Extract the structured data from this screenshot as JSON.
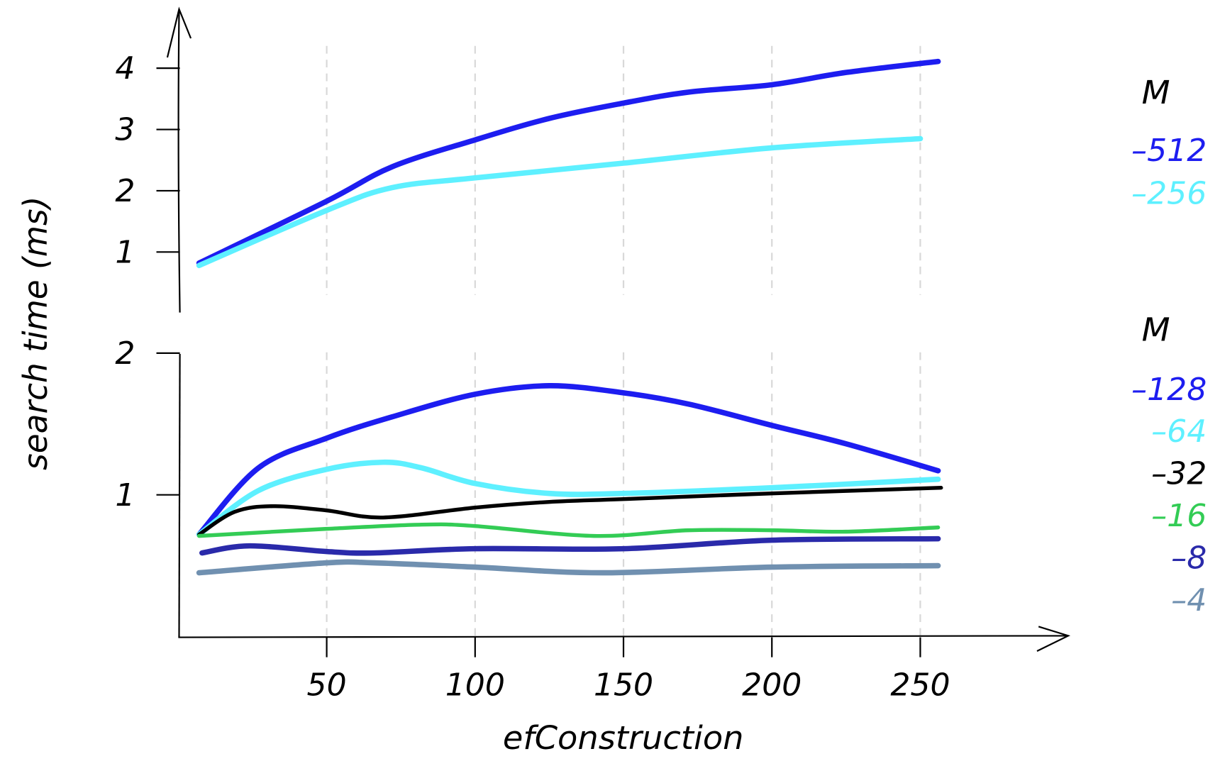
{
  "chart_data": [
    {
      "type": "line",
      "panel": "top",
      "xlabel": "efConstruction",
      "ylabel": "search time (ms)",
      "xlim": [
        0,
        300
      ],
      "ylim": [
        0,
        4.6
      ],
      "xticks": [
        "50",
        "100",
        "150",
        "200",
        "250"
      ],
      "yticks": [
        "1",
        "2",
        "3",
        "4"
      ],
      "grid": "vertical dashed",
      "legend_title": "M",
      "legend_position": "right",
      "series": [
        {
          "name": "512",
          "color": "#1d1df0",
          "x": [
            7,
            50,
            72,
            100,
            125,
            150,
            172,
            200,
            225,
            256
          ],
          "y": [
            0.82,
            1.83,
            2.39,
            2.83,
            3.18,
            3.43,
            3.61,
            3.73,
            3.93,
            4.11
          ]
        },
        {
          "name": "256",
          "color": "#5ef0ff",
          "x": [
            7,
            50,
            72,
            100,
            150,
            200,
            250
          ],
          "y": [
            0.78,
            1.68,
            2.05,
            2.21,
            2.45,
            2.7,
            2.85
          ]
        }
      ]
    },
    {
      "type": "line",
      "panel": "bottom",
      "xlabel": "efConstruction",
      "ylabel": "search time (ms)",
      "xlim": [
        0,
        300
      ],
      "ylim": [
        0,
        2
      ],
      "xticks": [
        "50",
        "100",
        "150",
        "200",
        "250"
      ],
      "yticks": [
        "1",
        "2"
      ],
      "grid": "vertical dashed",
      "legend_title": "M",
      "legend_position": "right",
      "series": [
        {
          "name": "128",
          "color": "#1d1df0",
          "x": [
            7,
            27,
            50,
            72,
            100,
            125,
            150,
            172,
            200,
            225,
            256
          ],
          "y": [
            0.72,
            1.19,
            1.4,
            1.55,
            1.71,
            1.77,
            1.72,
            1.64,
            1.49,
            1.36,
            1.17
          ]
        },
        {
          "name": "64",
          "color": "#5ef0ff",
          "x": [
            7,
            27,
            50,
            69,
            82,
            100,
            125,
            150,
            200,
            256
          ],
          "y": [
            0.72,
            1.03,
            1.18,
            1.23,
            1.19,
            1.08,
            1.01,
            1.01,
            1.05,
            1.11
          ]
        },
        {
          "name": "32",
          "color": "#000000",
          "x": [
            7,
            19,
            32,
            50,
            69,
            100,
            125,
            150,
            200,
            257
          ],
          "y": [
            0.72,
            0.88,
            0.92,
            0.89,
            0.84,
            0.91,
            0.95,
            0.97,
            1.01,
            1.05
          ]
        },
        {
          "name": "16",
          "color": "#33cc55",
          "x": [
            7,
            50,
            82,
            100,
            140,
            172,
            200,
            225,
            256
          ],
          "y": [
            0.71,
            0.76,
            0.79,
            0.78,
            0.71,
            0.75,
            0.75,
            0.74,
            0.77
          ]
        },
        {
          "name": "8",
          "color": "#2a2aaa",
          "x": [
            8,
            24,
            50,
            66,
            100,
            150,
            200,
            256
          ],
          "y": [
            0.59,
            0.64,
            0.6,
            0.59,
            0.62,
            0.62,
            0.68,
            0.69
          ]
        },
        {
          "name": "4",
          "color": "#7090b0",
          "x": [
            7,
            50,
            66,
            100,
            143,
            200,
            256
          ],
          "y": [
            0.45,
            0.52,
            0.52,
            0.49,
            0.45,
            0.49,
            0.5
          ]
        }
      ]
    }
  ]
}
